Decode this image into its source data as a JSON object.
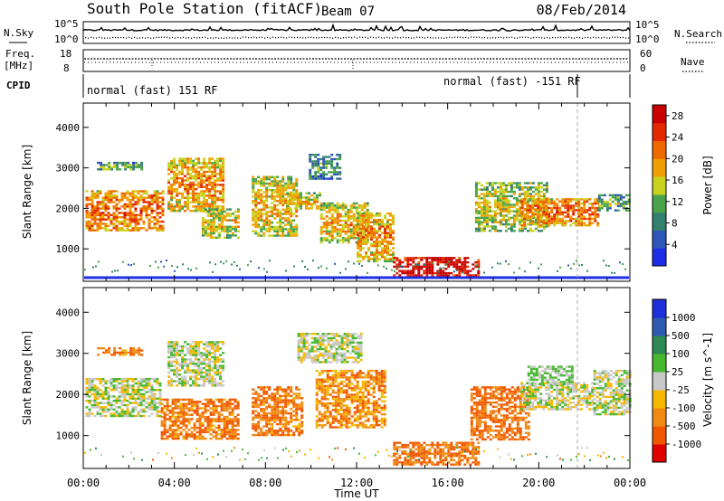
{
  "header": {
    "station": "South Pole Station (fitACF)",
    "beam": "Beam 07",
    "date": "08/Feb/2014"
  },
  "side_labels": {
    "nsky": "N.Sky",
    "freq_line1": "Freq.",
    "freq_line2": "[MHz]",
    "cpid": "CPID",
    "nsearch": "N.Search",
    "nave": "Nave"
  },
  "noise_axis": {
    "left_top": "10^5",
    "left_bottom": "10^0",
    "right_top": "10^5",
    "right_bottom": "10^0"
  },
  "freq_axis": {
    "left_top": "18",
    "left_bottom": "8",
    "right_top": "60",
    "right_bottom": "0"
  },
  "cpid_labels": {
    "first": "normal (fast) 151 RF",
    "second": "normal (fast) -151 RF"
  },
  "x_ticks": [
    "00:00",
    "04:00",
    "08:00",
    "12:00",
    "16:00",
    "20:00",
    "00:00"
  ],
  "xlabel": "Time UT",
  "colors": {
    "power_scale": [
      "#1e2ee6",
      "#2e55b8",
      "#34806e",
      "#4aa34a",
      "#c8d21e",
      "#f0a000",
      "#ee6a00",
      "#e32a00",
      "#c80000"
    ],
    "velocity_scale": [
      "#e00000",
      "#f05800",
      "#f08a14",
      "#f4b800",
      "#c8c8c8",
      "#48b830",
      "#2e8a55",
      "#2e5ab0",
      "#1e2ed8"
    ]
  },
  "chart_data": [
    {
      "type": "heatmap",
      "panel": "power",
      "ylabel": "Slant Range [km]",
      "ylim": [
        200,
        4600
      ],
      "y_ticks": [
        1000,
        2000,
        3000,
        4000
      ],
      "xlim": [
        "00:00",
        "24:00"
      ],
      "colorbar": {
        "label": "Power [dB]",
        "ticks": [
          4,
          8,
          12,
          16,
          20,
          24,
          28
        ],
        "range": [
          0,
          30
        ]
      },
      "regions": [
        {
          "t0": 0.1,
          "t1": 3.5,
          "r0": 1450,
          "r1": 2450,
          "value": 20
        },
        {
          "t0": 0.6,
          "t1": 2.6,
          "r0": 2950,
          "r1": 3150,
          "value": 10
        },
        {
          "t0": 3.7,
          "t1": 6.2,
          "r0": 1950,
          "r1": 3250,
          "value": 18
        },
        {
          "t0": 5.2,
          "t1": 6.8,
          "r0": 1300,
          "r1": 2000,
          "value": 15
        },
        {
          "t0": 7.4,
          "t1": 9.4,
          "r0": 1350,
          "r1": 2800,
          "value": 16
        },
        {
          "t0": 8.9,
          "t1": 10.4,
          "r0": 2000,
          "r1": 2400,
          "value": 16
        },
        {
          "t0": 9.9,
          "t1": 11.3,
          "r0": 2750,
          "r1": 3350,
          "value": 8
        },
        {
          "t0": 10.4,
          "t1": 12.5,
          "r0": 1150,
          "r1": 2150,
          "value": 16
        },
        {
          "t0": 12.0,
          "t1": 13.6,
          "r0": 700,
          "r1": 1900,
          "value": 18
        },
        {
          "t0": 13.6,
          "t1": 17.4,
          "r0": 300,
          "r1": 800,
          "value": 28
        },
        {
          "t0": 17.2,
          "t1": 20.4,
          "r0": 1450,
          "r1": 2650,
          "value": 14
        },
        {
          "t0": 19.2,
          "t1": 22.6,
          "r0": 1600,
          "r1": 2250,
          "value": 20
        },
        {
          "t0": 22.6,
          "t1": 24.0,
          "r0": 1950,
          "r1": 2350,
          "value": 10
        }
      ]
    },
    {
      "type": "heatmap",
      "panel": "velocity",
      "ylabel": "Slant Range [km]",
      "ylim": [
        200,
        4600
      ],
      "y_ticks": [
        1000,
        2000,
        3000,
        4000
      ],
      "xlim": [
        "00:00",
        "24:00"
      ],
      "colorbar": {
        "label": "Velocity [m s^-1]",
        "ticks": [
          1000,
          500,
          100,
          25,
          -25,
          -100,
          -500,
          -1000
        ]
      },
      "regions": [
        {
          "t0": 0.1,
          "t1": 3.4,
          "r0": 1500,
          "r1": 2400,
          "value": 0
        },
        {
          "t0": 0.6,
          "t1": 2.6,
          "r0": 2950,
          "r1": 3150,
          "value": -150
        },
        {
          "t0": 3.7,
          "t1": 6.2,
          "r0": 2200,
          "r1": 3300,
          "value": 0
        },
        {
          "t0": 3.4,
          "t1": 6.8,
          "r0": 900,
          "r1": 1900,
          "value": -150
        },
        {
          "t0": 7.4,
          "t1": 9.6,
          "r0": 1000,
          "r1": 2200,
          "value": -150
        },
        {
          "t0": 9.4,
          "t1": 12.2,
          "r0": 2800,
          "r1": 3500,
          "value": 0
        },
        {
          "t0": 10.2,
          "t1": 13.2,
          "r0": 1200,
          "r1": 2600,
          "value": -120
        },
        {
          "t0": 13.6,
          "t1": 17.4,
          "r0": 300,
          "r1": 850,
          "value": -200
        },
        {
          "t0": 17.0,
          "t1": 19.6,
          "r0": 900,
          "r1": 2200,
          "value": -180
        },
        {
          "t0": 19.2,
          "t1": 22.4,
          "r0": 1650,
          "r1": 2300,
          "value": 0
        },
        {
          "t0": 19.5,
          "t1": 21.5,
          "r0": 2250,
          "r1": 2700,
          "value": 40
        },
        {
          "t0": 22.4,
          "t1": 24.0,
          "r0": 1500,
          "r1": 2600,
          "value": 0
        }
      ]
    }
  ]
}
